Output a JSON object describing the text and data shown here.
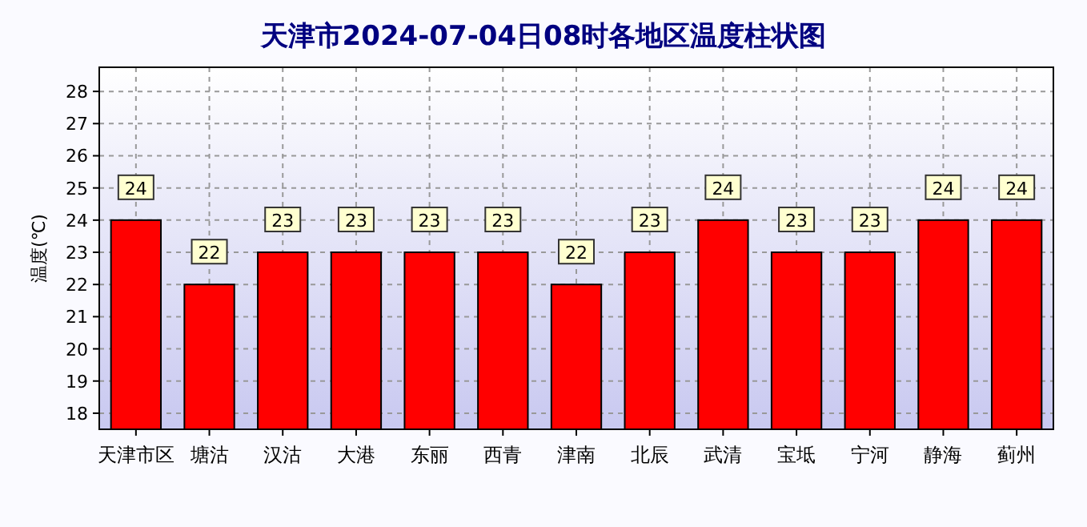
{
  "chart_data": {
    "type": "bar",
    "title": "天津市2024-07-04日08时各地区温度柱状图",
    "ylabel": "温度(℃)",
    "categories": [
      "天津市区",
      "塘沽",
      "汉沽",
      "大港",
      "东丽",
      "西青",
      "津南",
      "北辰",
      "武清",
      "宝坻",
      "宁河",
      "静海",
      "蓟州"
    ],
    "values": [
      24,
      22,
      23,
      23,
      23,
      23,
      22,
      23,
      24,
      23,
      23,
      24,
      24
    ],
    "color": "#ff0000",
    "ylim": [
      17.5,
      28.75
    ],
    "yticks": [
      18,
      19,
      20,
      21,
      22,
      23,
      24,
      25,
      26,
      27,
      28
    ],
    "grid": true,
    "data_labels": true
  }
}
